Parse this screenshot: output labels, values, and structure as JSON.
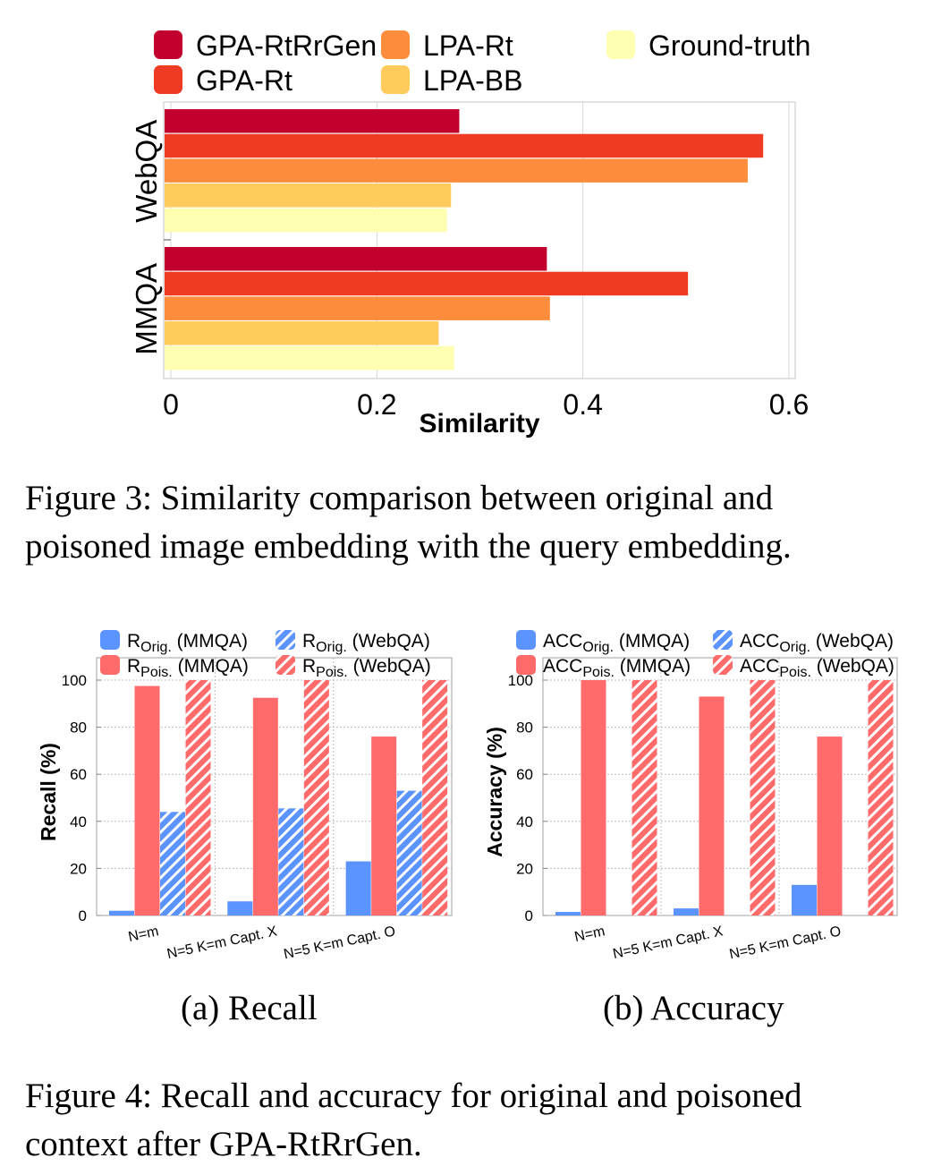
{
  "colors": {
    "gpa_rtrrgen": "#c1002d",
    "gpa_rt": "#f03b24",
    "lpa_rt": "#fd8d3c",
    "lpa_bb": "#fecb5c",
    "ground_truth": "#ffffb2",
    "orig": "#5b93ff",
    "pois": "#ff6b6b"
  },
  "chart_data": [
    {
      "type": "bar",
      "orientation": "horizontal",
      "categories": [
        "WebQA",
        "MMQA"
      ],
      "series": [
        {
          "name": "GPA-RtRrGen",
          "values": [
            0.28,
            0.365
          ]
        },
        {
          "name": "GPA-Rt",
          "values": [
            0.575,
            0.502
          ]
        },
        {
          "name": "LPA-Rt",
          "values": [
            0.56,
            0.368
          ]
        },
        {
          "name": "LPA-BB",
          "values": [
            0.272,
            0.26
          ]
        },
        {
          "name": "Ground-truth",
          "values": [
            0.268,
            0.275
          ]
        }
      ],
      "xlabel": "Similarity",
      "xlim": [
        0,
        0.6
      ],
      "xticks": [
        "0",
        "0.2",
        "0.4",
        "0.6"
      ],
      "grid": true,
      "legend": "top"
    },
    {
      "type": "bar",
      "categories": [
        "N=m",
        "N=5 K=m Capt. X",
        "N=5 K=m Capt. O"
      ],
      "series": [
        {
          "name": "R_Orig. (MMQA)",
          "values": [
            2,
            6,
            23
          ]
        },
        {
          "name": "R_Pois. (MMQA)",
          "values": [
            97.5,
            92.5,
            76
          ]
        },
        {
          "name": "R_Orig. (WebQA)",
          "values": [
            44,
            45.5,
            53
          ]
        },
        {
          "name": "R_Pois. (WebQA)",
          "values": [
            100,
            100,
            100
          ]
        }
      ],
      "ylabel": "Recall (%)",
      "ylim": [
        0,
        100
      ],
      "yticks": [
        "0",
        "20",
        "40",
        "60",
        "80",
        "100"
      ],
      "grid": true,
      "legend": "top"
    },
    {
      "type": "bar",
      "categories": [
        "N=m",
        "N=5 K=m Capt. X",
        "N=5 K=m Capt. O"
      ],
      "series": [
        {
          "name": "ACC_Orig. (MMQA)",
          "values": [
            1.5,
            3,
            13
          ]
        },
        {
          "name": "ACC_Pois. (MMQA)",
          "values": [
            100,
            93,
            76
          ]
        },
        {
          "name": "ACC_Orig. (WebQA)",
          "values": [
            0,
            0,
            0
          ]
        },
        {
          "name": "ACC_Pois. (WebQA)",
          "values": [
            100,
            100,
            100
          ]
        }
      ],
      "ylabel": "Accuracy (%)",
      "ylim": [
        0,
        100
      ],
      "yticks": [
        "0",
        "20",
        "40",
        "60",
        "80",
        "100"
      ],
      "grid": true,
      "legend": "top"
    }
  ],
  "legend_b": {
    "r": "R",
    "orig": "Orig.",
    "pois": "Pois.",
    "mmqa": " (MMQA)",
    "webqa": " (WebQA)",
    "acc": "ACC"
  },
  "captions": {
    "fig3_line1": "Figure 3: Similarity comparison between original and",
    "fig3_line2": "poisoned image embedding with the query embedding.",
    "sub_a": "(a) Recall",
    "sub_b": "(b) Accuracy",
    "fig4_line1": "Figure 4: Recall and accuracy for original and poisoned",
    "fig4_line2": "context after GPA-RtRrGen."
  }
}
